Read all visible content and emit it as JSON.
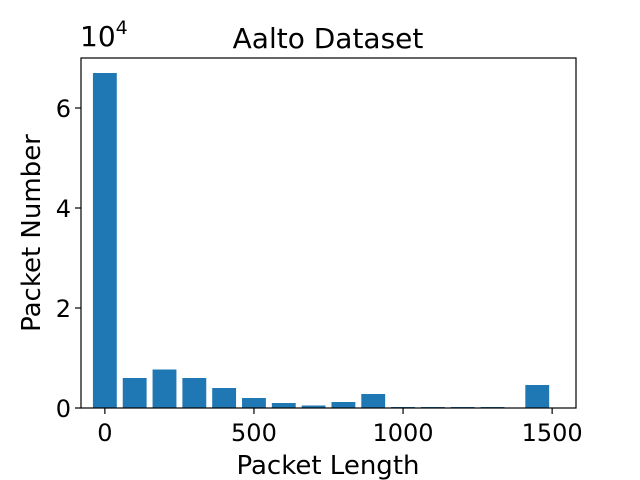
{
  "chart_data": {
    "type": "bar",
    "title": "Aalto Dataset",
    "xlabel": "Packet Length",
    "ylabel": "Packet Number",
    "y_scale_label": "10^4",
    "y_scale_base": "10",
    "y_scale_exponent": "4",
    "xlim": [
      -80,
      1580
    ],
    "ylim": [
      0,
      7
    ],
    "bin_width": 80,
    "x_ticks": [
      0,
      500,
      1000,
      1500
    ],
    "x_tick_labels": [
      "0",
      "500",
      "1000",
      "1500"
    ],
    "y_ticks": [
      0,
      2,
      4,
      6
    ],
    "y_tick_labels": [
      "0",
      "2",
      "4",
      "6"
    ],
    "grid": false,
    "bar_color": "#1f77b4",
    "x": [
      0,
      100,
      200,
      300,
      400,
      500,
      600,
      700,
      800,
      900,
      1000,
      1100,
      1200,
      1300,
      1450
    ],
    "values": [
      6.7,
      0.6,
      0.77,
      0.6,
      0.4,
      0.2,
      0.1,
      0.05,
      0.12,
      0.28,
      0.02,
      0.02,
      0.02,
      0.02,
      0.46
    ]
  }
}
